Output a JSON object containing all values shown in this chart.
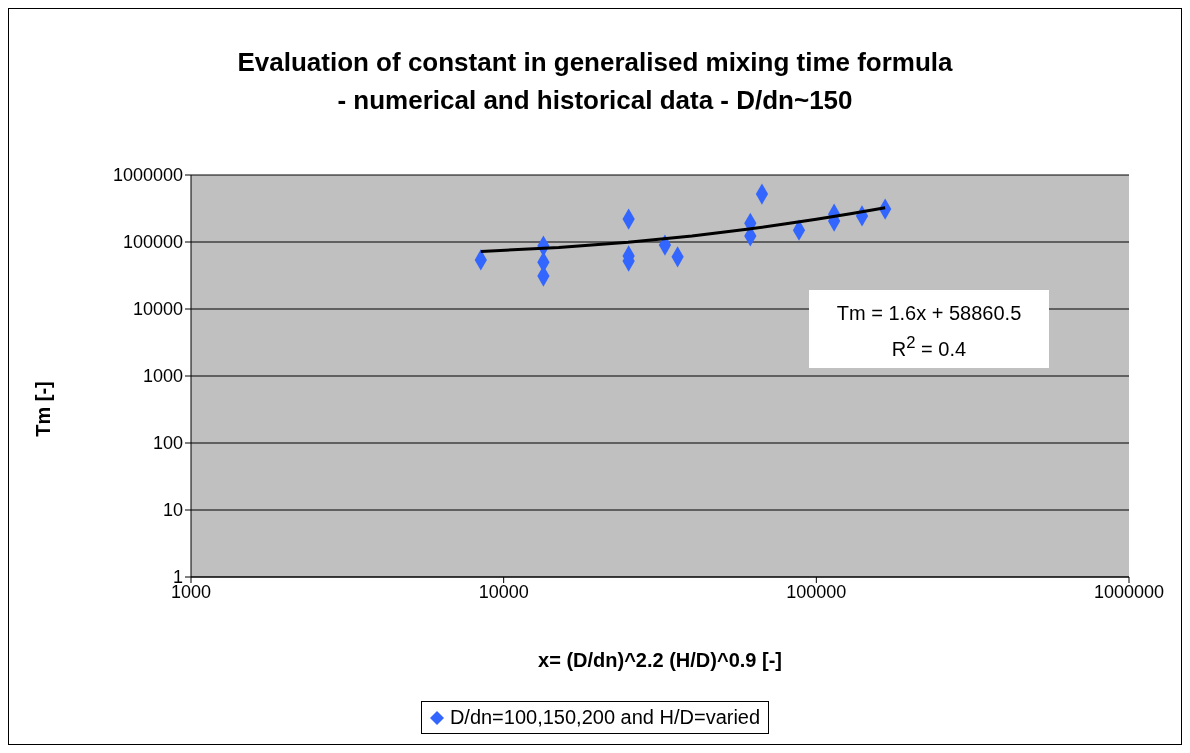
{
  "chart_data": {
    "type": "scatter",
    "title": "Evaluation of constant in generalised mixing time formula\n- numerical and historical data - D/dn~150",
    "xlabel": "x= (D/dn)^2.2 (H/D)^0.9  [-]",
    "ylabel": "Tm [-]",
    "series": [
      {
        "name": "D/dn=100,150,200 and H/D=varied",
        "type": "scatter",
        "color": "#3366ff",
        "marker": "diamond",
        "x": [
          8450,
          13400,
          13400,
          13400,
          25100,
          25100,
          25100,
          32800,
          36000,
          61500,
          61500,
          67000,
          88000,
          114000,
          114000,
          140000,
          166000
        ],
        "values": [
          54000,
          87000,
          50000,
          31000,
          220000,
          62000,
          52000,
          90000,
          60000,
          190000,
          123000,
          520000,
          150000,
          260000,
          205000,
          245000,
          310000
        ]
      },
      {
        "type": "line",
        "color": "#000000",
        "marker": "none",
        "x": [
          8450,
          15000,
          25000,
          40000,
          60000,
          80000,
          100000,
          130000,
          166000
        ],
        "values": [
          72381,
          82861,
          98861,
          122861,
          154861,
          186861,
          218861,
          266861,
          324461
        ]
      }
    ],
    "log": "xy",
    "xlim": [
      1000,
      1000000
    ],
    "xticks": [
      1000,
      10000,
      100000,
      1000000
    ],
    "ylim": [
      1,
      1000000
    ],
    "yticks": [
      1,
      10,
      100,
      1000,
      10000,
      100000,
      1000000
    ],
    "grid": "y",
    "legend": "bottom",
    "annotations": [
      "Tm = 1.6x + 58860.5",
      "R$^{2}$ = 0.4"
    ]
  }
}
